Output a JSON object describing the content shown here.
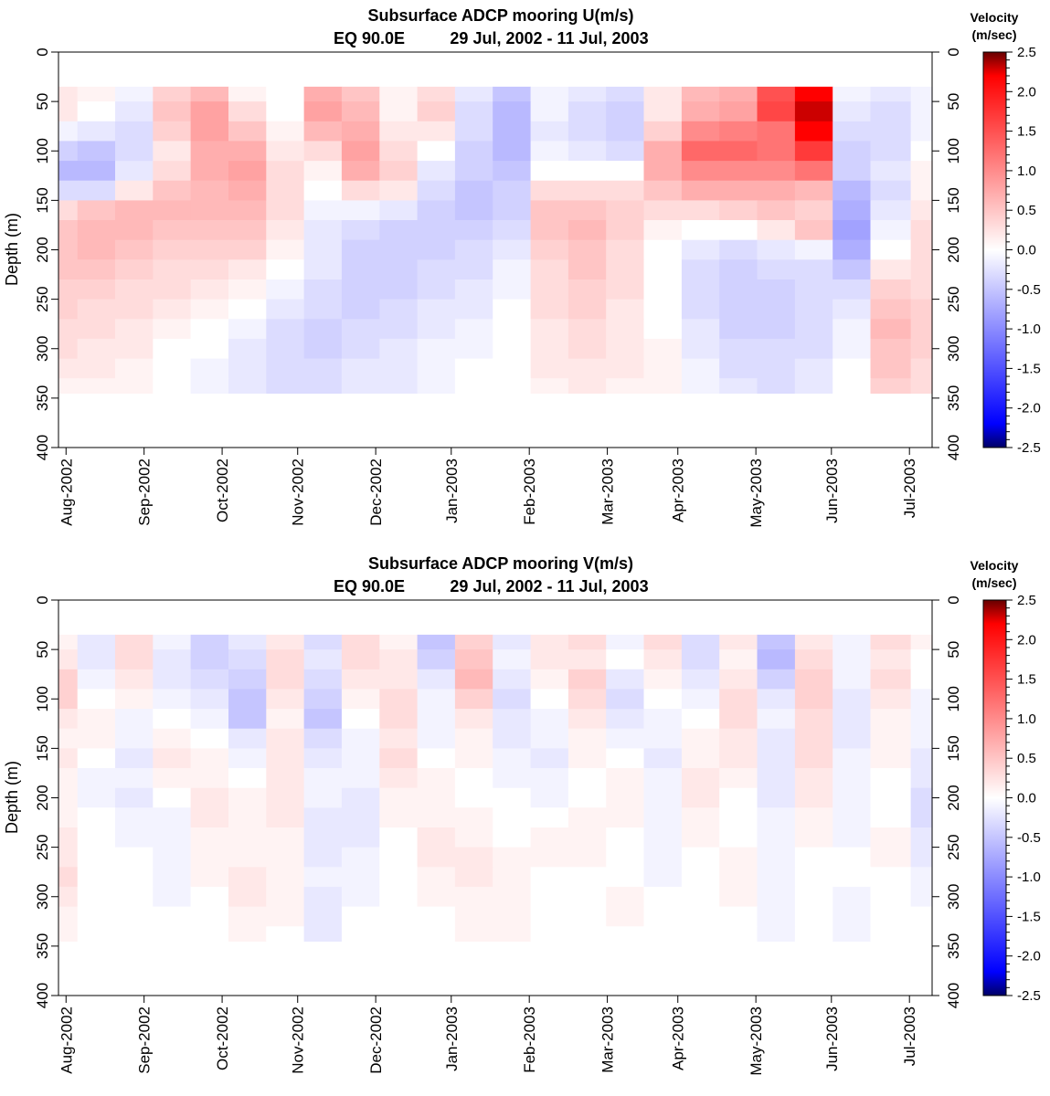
{
  "chart_data": [
    {
      "type": "heatmap",
      "title": "Subsurface ADCP mooring U(m/s)",
      "subtitle_location": "EQ 90.0E",
      "subtitle_dates": "29 Jul, 2002 - 11 Jul, 2003",
      "xlabel": "",
      "ylabel": "Depth (m)",
      "x_ticks": [
        "Aug-2002",
        "Sep-2002",
        "Oct-2002",
        "Nov-2002",
        "Dec-2002",
        "Jan-2003",
        "Feb-2003",
        "Mar-2003",
        "Apr-2003",
        "May-2003",
        "Jun-2003",
        "Jul-2003"
      ],
      "x_tick_days": [
        3,
        34,
        65,
        95,
        126,
        156,
        187,
        218,
        246,
        277,
        307,
        338
      ],
      "x_range_days": [
        0,
        347
      ],
      "y_ticks": [
        0,
        50,
        100,
        150,
        200,
        250,
        300,
        350,
        400
      ],
      "ylim": [
        0,
        400
      ],
      "y_reversed": true,
      "data_depth_range": [
        35,
        345
      ],
      "colorbar": {
        "title_line1": "Velocity",
        "title_line2": "(m/sec)",
        "range": [
          -2.5,
          2.5
        ],
        "tick_labels": [
          "2.5",
          "2.0",
          "1.5",
          "1.0",
          "0.5",
          "0.0",
          "-0.5",
          "-1.0",
          "-1.5",
          "-2.0",
          "-2.5"
        ],
        "colors": [
          "#000066",
          "#0000ff",
          "#ffffff",
          "#ff0000",
          "#660000"
        ]
      },
      "time_days": [
        0,
        15,
        30,
        45,
        60,
        75,
        90,
        105,
        120,
        135,
        150,
        165,
        180,
        195,
        210,
        225,
        240,
        255,
        270,
        285,
        300,
        315,
        330,
        347
      ],
      "depths_m": [
        40,
        60,
        80,
        100,
        120,
        140,
        160,
        180,
        200,
        220,
        240,
        260,
        280,
        300,
        320,
        340
      ],
      "values": [
        [
          0.2,
          0.1,
          -0.1,
          0.4,
          0.6,
          0.1,
          0.0,
          0.7,
          0.5,
          0.1,
          0.3,
          -0.2,
          -0.5,
          -0.1,
          -0.2,
          -0.3,
          0.2,
          0.6,
          0.7,
          1.5,
          2.2,
          -0.1,
          -0.2,
          -0.1
        ],
        [
          0.2,
          0.0,
          -0.2,
          0.5,
          0.8,
          0.3,
          0.0,
          0.8,
          0.6,
          0.1,
          0.4,
          -0.3,
          -0.6,
          -0.1,
          -0.3,
          -0.4,
          0.2,
          0.7,
          0.8,
          1.6,
          2.3,
          -0.2,
          -0.3,
          -0.1
        ],
        [
          -0.1,
          -0.2,
          -0.3,
          0.4,
          0.8,
          0.5,
          0.1,
          0.6,
          0.7,
          0.2,
          0.2,
          -0.3,
          -0.6,
          -0.2,
          -0.3,
          -0.4,
          0.4,
          1.0,
          1.1,
          1.2,
          2.2,
          -0.3,
          -0.3,
          -0.1
        ],
        [
          -0.4,
          -0.5,
          -0.3,
          0.2,
          0.7,
          0.7,
          0.2,
          0.3,
          0.8,
          0.3,
          0.0,
          -0.4,
          -0.6,
          -0.1,
          -0.2,
          -0.3,
          0.7,
          1.3,
          1.3,
          1.2,
          1.7,
          -0.4,
          -0.3,
          0.0
        ],
        [
          -0.6,
          -0.6,
          -0.2,
          0.3,
          0.7,
          0.8,
          0.3,
          0.1,
          0.7,
          0.4,
          -0.2,
          -0.4,
          -0.5,
          0.0,
          0.0,
          0.0,
          0.7,
          1.0,
          1.0,
          1.0,
          1.2,
          -0.4,
          -0.2,
          0.1
        ],
        [
          -0.3,
          -0.3,
          0.2,
          0.5,
          0.6,
          0.7,
          0.3,
          0.0,
          0.3,
          0.2,
          -0.3,
          -0.5,
          -0.4,
          0.3,
          0.3,
          0.3,
          0.5,
          0.7,
          0.7,
          0.7,
          0.6,
          -0.6,
          -0.3,
          0.1
        ],
        [
          0.3,
          0.5,
          0.6,
          0.6,
          0.6,
          0.6,
          0.3,
          -0.1,
          -0.1,
          -0.2,
          -0.4,
          -0.5,
          -0.4,
          0.5,
          0.5,
          0.4,
          0.3,
          0.3,
          0.4,
          0.5,
          0.4,
          -0.7,
          -0.2,
          0.2
        ],
        [
          0.5,
          0.6,
          0.6,
          0.5,
          0.5,
          0.5,
          0.2,
          -0.2,
          -0.3,
          -0.4,
          -0.4,
          -0.4,
          -0.3,
          0.5,
          0.6,
          0.4,
          0.1,
          0.0,
          0.0,
          0.2,
          0.5,
          -0.8,
          -0.1,
          0.3
        ],
        [
          0.5,
          0.6,
          0.5,
          0.4,
          0.4,
          0.4,
          0.1,
          -0.2,
          -0.4,
          -0.4,
          -0.4,
          -0.3,
          -0.2,
          0.4,
          0.5,
          0.3,
          0.0,
          -0.2,
          -0.3,
          -0.2,
          -0.1,
          -0.7,
          0.0,
          0.3
        ],
        [
          0.5,
          0.5,
          0.4,
          0.3,
          0.3,
          0.2,
          0.0,
          -0.2,
          -0.4,
          -0.4,
          -0.3,
          -0.3,
          -0.1,
          0.3,
          0.5,
          0.3,
          0.0,
          -0.3,
          -0.4,
          -0.3,
          -0.3,
          -0.5,
          0.2,
          0.3
        ],
        [
          0.4,
          0.4,
          0.3,
          0.3,
          0.2,
          0.1,
          -0.1,
          -0.3,
          -0.4,
          -0.4,
          -0.3,
          -0.2,
          -0.1,
          0.3,
          0.4,
          0.3,
          0.0,
          -0.3,
          -0.4,
          -0.4,
          -0.3,
          -0.3,
          0.4,
          0.3
        ],
        [
          0.4,
          0.3,
          0.3,
          0.2,
          0.1,
          0.0,
          -0.2,
          -0.3,
          -0.4,
          -0.3,
          -0.2,
          -0.2,
          0.0,
          0.3,
          0.4,
          0.2,
          0.0,
          -0.3,
          -0.4,
          -0.4,
          -0.3,
          -0.2,
          0.5,
          0.4
        ],
        [
          0.3,
          0.3,
          0.2,
          0.1,
          0.0,
          -0.1,
          -0.3,
          -0.4,
          -0.3,
          -0.3,
          -0.2,
          -0.1,
          0.0,
          0.2,
          0.3,
          0.2,
          0.0,
          -0.2,
          -0.4,
          -0.4,
          -0.3,
          -0.1,
          0.6,
          0.4
        ],
        [
          0.3,
          0.2,
          0.2,
          0.0,
          0.0,
          -0.2,
          -0.3,
          -0.4,
          -0.3,
          -0.2,
          -0.1,
          -0.1,
          0.0,
          0.2,
          0.3,
          0.2,
          0.1,
          -0.2,
          -0.3,
          -0.3,
          -0.3,
          -0.1,
          0.5,
          0.4
        ],
        [
          0.2,
          0.2,
          0.1,
          0.0,
          -0.1,
          -0.2,
          -0.3,
          -0.3,
          -0.2,
          -0.2,
          -0.1,
          0.0,
          0.0,
          0.2,
          0.2,
          0.2,
          0.1,
          -0.1,
          -0.3,
          -0.3,
          -0.2,
          0.0,
          0.5,
          0.3
        ],
        [
          0.1,
          0.1,
          0.1,
          0.0,
          -0.1,
          -0.2,
          -0.3,
          -0.3,
          -0.2,
          -0.2,
          -0.1,
          0.0,
          0.0,
          0.1,
          0.2,
          0.1,
          0.1,
          -0.1,
          -0.2,
          -0.3,
          -0.2,
          0.0,
          0.4,
          0.3
        ]
      ]
    },
    {
      "type": "heatmap",
      "title": "Subsurface ADCP mooring V(m/s)",
      "subtitle_location": "EQ 90.0E",
      "subtitle_dates": "29 Jul, 2002 - 11 Jul, 2003",
      "xlabel": "",
      "ylabel": "Depth (m)",
      "x_ticks": [
        "Aug-2002",
        "Sep-2002",
        "Oct-2002",
        "Nov-2002",
        "Dec-2002",
        "Jan-2003",
        "Feb-2003",
        "Mar-2003",
        "Apr-2003",
        "May-2003",
        "Jun-2003",
        "Jul-2003"
      ],
      "x_tick_days": [
        3,
        34,
        65,
        95,
        126,
        156,
        187,
        218,
        246,
        277,
        307,
        338
      ],
      "x_range_days": [
        0,
        347
      ],
      "y_ticks": [
        0,
        50,
        100,
        150,
        200,
        250,
        300,
        350,
        400
      ],
      "ylim": [
        0,
        400
      ],
      "y_reversed": true,
      "data_depth_range": [
        35,
        345
      ],
      "colorbar": {
        "title_line1": "Velocity",
        "title_line2": "(m/sec)",
        "range": [
          -2.5,
          2.5
        ],
        "tick_labels": [
          "2.5",
          "2.0",
          "1.5",
          "1.0",
          "0.5",
          "0.0",
          "-0.5",
          "-1.0",
          "-1.5",
          "-2.0",
          "-2.5"
        ],
        "colors": [
          "#000066",
          "#0000ff",
          "#ffffff",
          "#ff0000",
          "#660000"
        ]
      },
      "time_days": [
        0,
        15,
        30,
        45,
        60,
        75,
        90,
        105,
        120,
        135,
        150,
        165,
        180,
        195,
        210,
        225,
        240,
        255,
        270,
        285,
        300,
        315,
        330,
        347
      ],
      "depths_m": [
        40,
        60,
        80,
        100,
        120,
        140,
        160,
        180,
        200,
        220,
        240,
        260,
        280,
        300,
        320,
        340
      ],
      "values": [
        [
          0.1,
          -0.2,
          0.3,
          -0.1,
          -0.4,
          -0.2,
          0.2,
          -0.3,
          0.3,
          0.1,
          -0.5,
          0.4,
          -0.2,
          0.2,
          0.3,
          -0.1,
          0.3,
          -0.3,
          0.2,
          -0.5,
          0.2,
          -0.1,
          0.3,
          0.1
        ],
        [
          0.2,
          -0.2,
          0.3,
          -0.2,
          -0.4,
          -0.3,
          0.3,
          -0.2,
          0.3,
          0.2,
          -0.4,
          0.5,
          -0.1,
          0.2,
          0.2,
          0.0,
          0.2,
          -0.3,
          0.1,
          -0.6,
          0.3,
          -0.1,
          0.2,
          0.0
        ],
        [
          0.4,
          -0.1,
          0.2,
          -0.2,
          -0.3,
          -0.4,
          0.3,
          -0.3,
          0.2,
          0.2,
          -0.2,
          0.6,
          -0.2,
          0.1,
          0.4,
          -0.2,
          0.1,
          -0.2,
          0.2,
          -0.4,
          0.4,
          -0.1,
          0.3,
          0.0
        ],
        [
          0.4,
          0.0,
          0.1,
          -0.1,
          -0.2,
          -0.5,
          0.2,
          -0.4,
          0.1,
          0.3,
          -0.1,
          0.4,
          -0.3,
          0.0,
          0.3,
          -0.3,
          0.0,
          -0.1,
          0.3,
          -0.2,
          0.4,
          -0.2,
          0.2,
          -0.1
        ],
        [
          0.2,
          0.1,
          -0.1,
          0.0,
          -0.1,
          -0.5,
          0.1,
          -0.5,
          0.0,
          0.3,
          -0.1,
          0.2,
          -0.2,
          -0.1,
          0.2,
          -0.2,
          -0.1,
          0.0,
          0.3,
          -0.1,
          0.3,
          -0.2,
          0.1,
          -0.1
        ],
        [
          0.1,
          0.1,
          -0.1,
          0.1,
          0.0,
          -0.2,
          0.2,
          -0.3,
          -0.1,
          0.2,
          -0.1,
          0.1,
          -0.2,
          -0.1,
          0.1,
          -0.1,
          -0.1,
          0.1,
          0.2,
          -0.2,
          0.3,
          -0.2,
          0.1,
          -0.1
        ],
        [
          0.2,
          0.0,
          -0.2,
          0.2,
          0.1,
          -0.1,
          0.2,
          -0.2,
          -0.1,
          0.3,
          0.0,
          0.1,
          -0.1,
          -0.2,
          0.1,
          0.0,
          -0.2,
          0.1,
          0.2,
          -0.2,
          0.3,
          -0.1,
          0.1,
          -0.2
        ],
        [
          0.1,
          -0.1,
          -0.1,
          0.1,
          0.1,
          0.0,
          0.2,
          -0.1,
          -0.1,
          0.2,
          0.1,
          0.0,
          -0.1,
          -0.1,
          0.0,
          0.1,
          -0.1,
          0.2,
          0.1,
          -0.2,
          0.2,
          -0.1,
          0.0,
          -0.2
        ],
        [
          0.1,
          -0.1,
          -0.2,
          0.0,
          0.2,
          0.1,
          0.2,
          -0.1,
          -0.2,
          0.1,
          0.1,
          0.0,
          0.0,
          -0.1,
          0.0,
          0.1,
          -0.1,
          0.2,
          0.0,
          -0.2,
          0.2,
          -0.1,
          0.0,
          -0.3
        ],
        [
          0.1,
          0.0,
          -0.1,
          -0.1,
          0.2,
          0.1,
          0.2,
          -0.2,
          -0.2,
          0.1,
          0.1,
          0.1,
          0.0,
          0.0,
          0.1,
          0.1,
          -0.1,
          0.1,
          0.0,
          -0.1,
          0.1,
          -0.1,
          0.0,
          -0.3
        ],
        [
          0.2,
          0.0,
          -0.1,
          -0.1,
          0.1,
          0.1,
          0.1,
          -0.2,
          -0.2,
          0.0,
          0.2,
          0.1,
          0.0,
          0.1,
          0.1,
          0.0,
          -0.1,
          0.1,
          0.0,
          -0.1,
          0.1,
          -0.1,
          0.1,
          -0.2
        ],
        [
          0.2,
          0.0,
          0.0,
          -0.1,
          0.1,
          0.1,
          0.1,
          -0.2,
          -0.1,
          0.0,
          0.2,
          0.2,
          0.1,
          0.1,
          0.1,
          0.0,
          -0.1,
          0.0,
          0.1,
          -0.1,
          0.0,
          0.0,
          0.1,
          -0.2
        ],
        [
          0.3,
          0.0,
          0.0,
          -0.1,
          0.1,
          0.2,
          0.1,
          -0.1,
          -0.1,
          0.0,
          0.1,
          0.2,
          0.1,
          0.0,
          0.0,
          0.0,
          -0.1,
          0.0,
          0.1,
          -0.1,
          0.0,
          0.0,
          0.0,
          -0.1
        ],
        [
          0.2,
          0.0,
          0.0,
          -0.1,
          0.0,
          0.2,
          0.1,
          -0.2,
          -0.1,
          0.0,
          0.1,
          0.1,
          0.1,
          0.0,
          0.0,
          0.1,
          0.0,
          0.0,
          0.1,
          -0.1,
          0.0,
          -0.1,
          0.0,
          -0.1
        ],
        [
          0.1,
          0.0,
          0.0,
          0.0,
          0.0,
          0.1,
          0.1,
          -0.2,
          0.0,
          0.0,
          0.0,
          0.1,
          0.1,
          0.0,
          0.0,
          0.1,
          0.0,
          0.0,
          0.0,
          -0.1,
          0.0,
          -0.1,
          0.0,
          0.0
        ],
        [
          0.1,
          0.0,
          0.0,
          0.0,
          0.0,
          0.1,
          0.0,
          -0.2,
          0.0,
          0.0,
          0.0,
          0.1,
          0.1,
          0.0,
          0.0,
          0.0,
          0.0,
          0.0,
          0.0,
          -0.1,
          0.0,
          -0.1,
          0.0,
          0.0
        ]
      ]
    }
  ]
}
